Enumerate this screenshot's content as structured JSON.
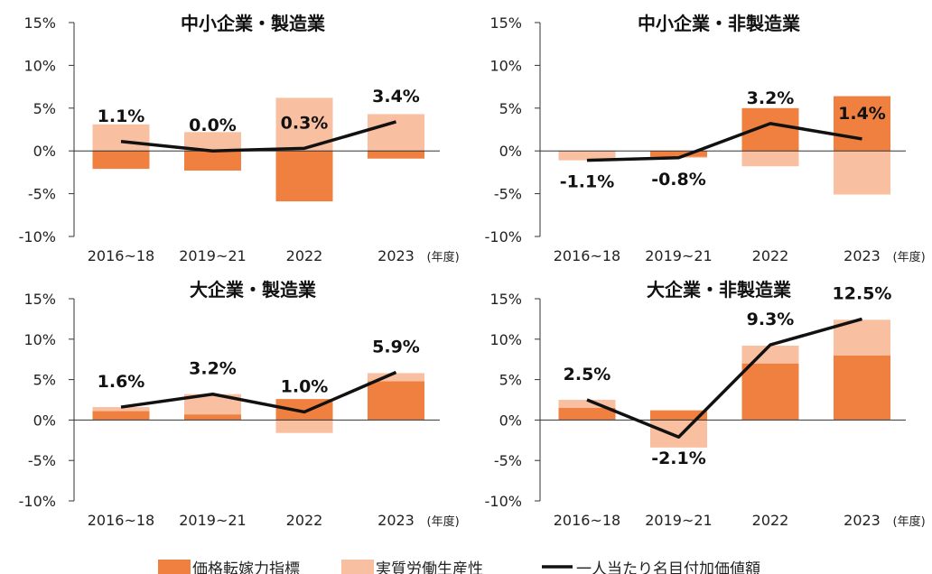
{
  "colors": {
    "price": "#F08040",
    "productivity": "#F8BFA0",
    "line": "#111111"
  },
  "legend": [
    {
      "label": "価格転嫁力指標",
      "type": "bar",
      "color": "#F08040"
    },
    {
      "label": "実質労働生産性",
      "type": "bar",
      "color": "#F8BFA0"
    },
    {
      "label": "一人当たり名目付加価値額",
      "type": "line",
      "color": "#111111"
    }
  ],
  "chart_data": [
    {
      "type": "bar",
      "title": "中小企業・製造業",
      "categories": [
        "2016~18",
        "2019~21",
        "2022",
        "2023"
      ],
      "x_unit": "(年度)",
      "ylim": [
        -10,
        15
      ],
      "yticks": [
        "15%",
        "10%",
        "5%",
        "0%",
        "-5%",
        "-10%"
      ],
      "ytick_values": [
        15,
        10,
        5,
        0,
        -5,
        -10
      ],
      "series": [
        {
          "name": "価格転嫁力指標",
          "type": "bar",
          "values": [
            -2.1,
            -2.3,
            -5.9,
            -0.9
          ]
        },
        {
          "name": "実質労働生産性",
          "type": "bar",
          "values": [
            3.1,
            2.2,
            6.2,
            4.3
          ]
        },
        {
          "name": "一人当たり名目付加価値額",
          "type": "line",
          "values": [
            1.1,
            0.0,
            0.3,
            3.4
          ],
          "labels": [
            "1.1%",
            "0.0%",
            "0.3%",
            "3.4%"
          ]
        }
      ]
    },
    {
      "type": "bar",
      "title": "中小企業・非製造業",
      "categories": [
        "2016~18",
        "2019~21",
        "2022",
        "2023"
      ],
      "x_unit": "(年度)",
      "ylim": [
        -10,
        15
      ],
      "yticks": [
        "15%",
        "10%",
        "5%",
        "0%",
        "-5%",
        "-10%"
      ],
      "ytick_values": [
        15,
        10,
        5,
        0,
        -5,
        -10
      ],
      "series": [
        {
          "name": "価格転嫁力指標",
          "type": "bar",
          "values": [
            0.0,
            -0.7,
            5.0,
            6.4
          ]
        },
        {
          "name": "実質労働生産性",
          "type": "bar",
          "values": [
            -1.1,
            -0.1,
            -1.8,
            -5.1
          ]
        },
        {
          "name": "一人当たり名目付加価値額",
          "type": "line",
          "values": [
            -1.1,
            -0.8,
            3.2,
            1.4
          ],
          "labels": [
            "-1.1%",
            "-0.8%",
            "3.2%",
            "1.4%"
          ]
        }
      ]
    },
    {
      "type": "bar",
      "title": "大企業・製造業",
      "categories": [
        "2016~18",
        "2019~21",
        "2022",
        "2023"
      ],
      "x_unit": "(年度)",
      "ylim": [
        -10,
        15
      ],
      "yticks": [
        "15%",
        "10%",
        "5%",
        "0%",
        "-5%",
        "-10%"
      ],
      "ytick_values": [
        15,
        10,
        5,
        0,
        -5,
        -10
      ],
      "series": [
        {
          "name": "価格転嫁力指標",
          "type": "bar",
          "values": [
            1.1,
            0.7,
            2.6,
            4.8
          ]
        },
        {
          "name": "実質労働生産性",
          "type": "bar",
          "values": [
            0.5,
            2.5,
            -1.6,
            1.0
          ]
        },
        {
          "name": "一人当たり名目付加価値額",
          "type": "line",
          "values": [
            1.6,
            3.2,
            1.0,
            5.9
          ],
          "labels": [
            "1.6%",
            "3.2%",
            "1.0%",
            "5.9%"
          ]
        }
      ]
    },
    {
      "type": "bar",
      "title": "大企業・非製造業",
      "categories": [
        "2016~18",
        "2019~21",
        "2022",
        "2023"
      ],
      "x_unit": "(年度)",
      "ylim": [
        -10,
        15
      ],
      "yticks": [
        "15%",
        "10%",
        "5%",
        "0%",
        "-5%",
        "-10%"
      ],
      "ytick_values": [
        15,
        10,
        5,
        0,
        -5,
        -10
      ],
      "series": [
        {
          "name": "価格転嫁力指標",
          "type": "bar",
          "values": [
            1.5,
            1.2,
            7.0,
            8.0
          ]
        },
        {
          "name": "実質労働生産性",
          "type": "bar",
          "values": [
            1.0,
            -3.4,
            2.2,
            4.4
          ]
        },
        {
          "name": "一人当たり名目付加価値額",
          "type": "line",
          "values": [
            2.5,
            -2.1,
            9.3,
            12.5
          ],
          "labels": [
            "2.5%",
            "-2.1%",
            "9.3%",
            "12.5%"
          ]
        }
      ]
    }
  ]
}
